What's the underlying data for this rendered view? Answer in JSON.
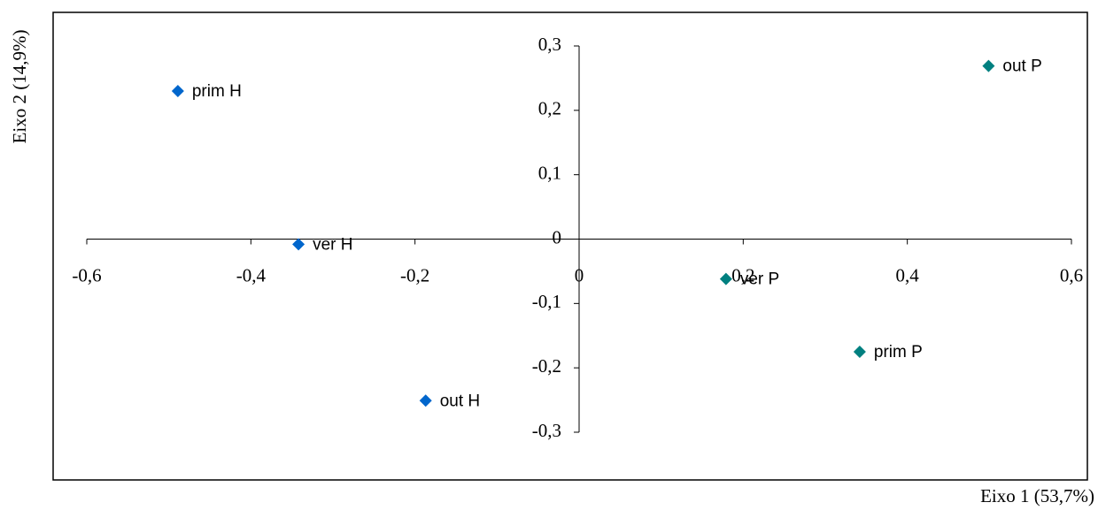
{
  "chart_data": {
    "type": "scatter",
    "x_label": "Eixo 1 (53,7%)",
    "y_label": "Eixo 2 (14,9%)",
    "xlim": [
      -0.6,
      0.6
    ],
    "ylim": [
      -0.3,
      0.3
    ],
    "xticks": [
      {
        "value": -0.6,
        "label": "-0,6"
      },
      {
        "value": -0.4,
        "label": "-0,4"
      },
      {
        "value": -0.2,
        "label": "-0,2"
      },
      0,
      {
        "value": 0.2,
        "label": "0,2"
      },
      {
        "value": 0.4,
        "label": "0,4"
      },
      {
        "value": 0.6,
        "label": "0,6"
      }
    ],
    "yticks": [
      {
        "value": -0.3,
        "label": "-0,3"
      },
      {
        "value": -0.2,
        "label": "-0,2"
      },
      {
        "value": -0.1,
        "label": "-0,1"
      },
      0,
      {
        "value": 0.1,
        "label": "0,1"
      },
      {
        "value": 0.2,
        "label": "0,2"
      },
      {
        "value": 0.3,
        "label": "0,3"
      }
    ],
    "series": [
      {
        "color": "#0066cc",
        "x": [
          -0.489,
          -0.342,
          -0.187
        ],
        "values": [
          0.23,
          -0.008,
          -0.251
        ],
        "labels": [
          "prim H",
          "ver H",
          "out H"
        ]
      },
      {
        "color": "#008080",
        "x": [
          0.499,
          0.179,
          0.342
        ],
        "values": [
          0.269,
          -0.062,
          -0.175
        ],
        "labels": [
          "out P",
          "ver P",
          "prim P"
        ]
      }
    ]
  }
}
